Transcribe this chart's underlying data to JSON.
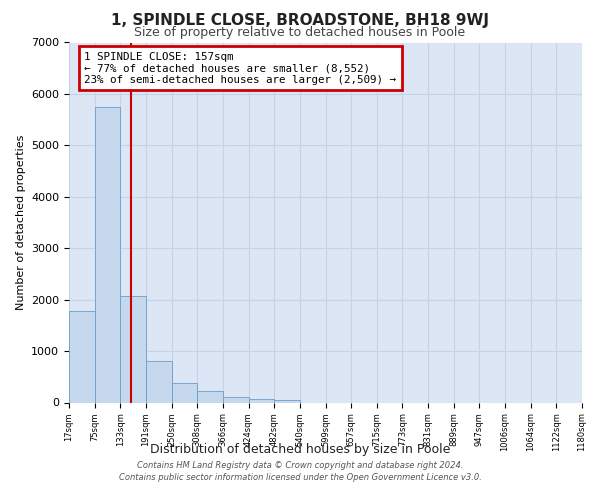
{
  "title": "1, SPINDLE CLOSE, BROADSTONE, BH18 9WJ",
  "subtitle": "Size of property relative to detached houses in Poole",
  "bar_values": [
    1780,
    5750,
    2080,
    800,
    370,
    230,
    100,
    60,
    40,
    0,
    0,
    0,
    0,
    0,
    0,
    0,
    0,
    0,
    0,
    0
  ],
  "bin_labels": [
    "17sqm",
    "75sqm",
    "133sqm",
    "191sqm",
    "250sqm",
    "308sqm",
    "366sqm",
    "424sqm",
    "482sqm",
    "540sqm",
    "599sqm",
    "657sqm",
    "715sqm",
    "773sqm",
    "831sqm",
    "889sqm",
    "947sqm",
    "1006sqm",
    "1064sqm",
    "1122sqm",
    "1180sqm"
  ],
  "bar_color": "#c5d8ee",
  "bar_edge_color": "#6a9ec5",
  "ylim": [
    0,
    7000
  ],
  "yticks": [
    0,
    1000,
    2000,
    3000,
    4000,
    5000,
    6000,
    7000
  ],
  "ylabel": "Number of detached properties",
  "xlabel": "Distribution of detached houses by size in Poole",
  "marker_line_color": "#cc0000",
  "annotation_line1": "1 SPINDLE CLOSE: 157sqm",
  "annotation_line2": "← 77% of detached houses are smaller (8,552)",
  "annotation_line3": "23% of semi-detached houses are larger (2,509) →",
  "annotation_box_color": "#cc0000",
  "grid_color": "#c5d3e8",
  "bg_color": "#dce6f5",
  "footer1": "Contains HM Land Registry data © Crown copyright and database right 2024.",
  "footer2": "Contains public sector information licensed under the Open Government Licence v3.0."
}
